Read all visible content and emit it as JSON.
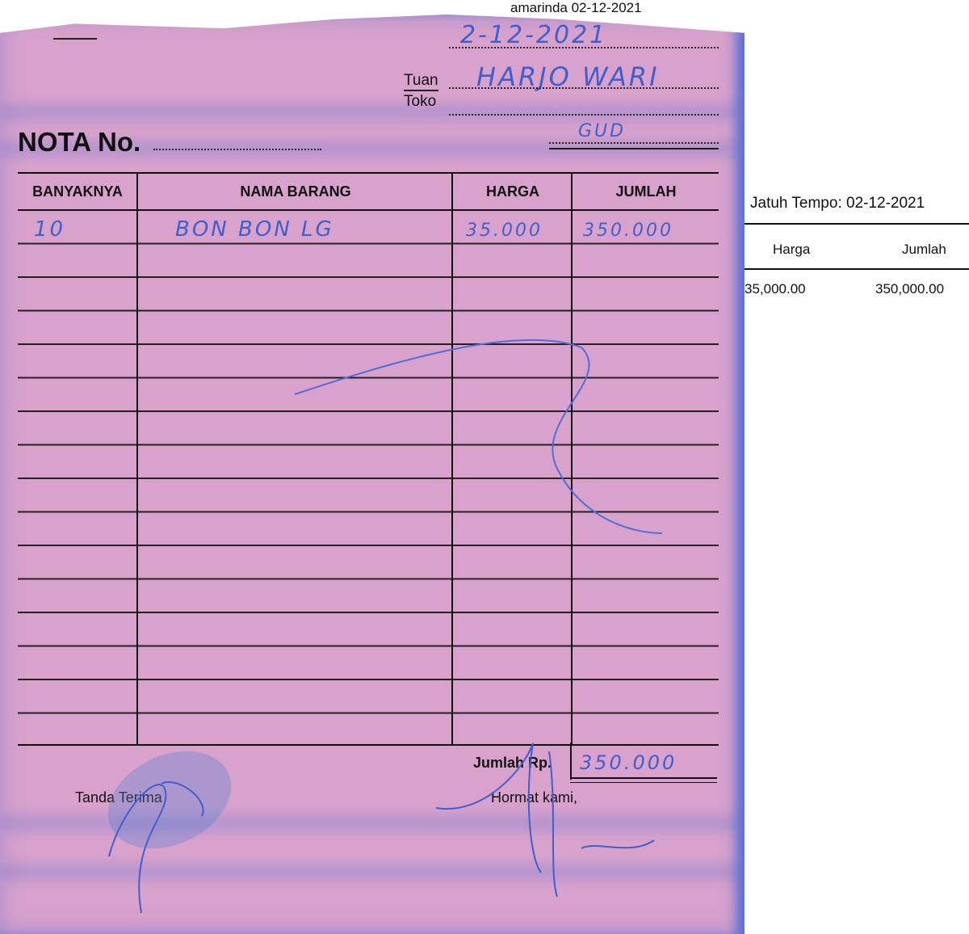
{
  "background_document": {
    "place_date": "amarinda 02-12-2021",
    "due_date": "Jatuh Tempo: 02-12-2021",
    "columns": [
      "Harga",
      "Jumlah"
    ],
    "row": {
      "harga": "35,000.00",
      "jumlah": "350,000.00"
    }
  },
  "nota": {
    "date_handwritten": "2-12-2021",
    "tuan_label": "Tuan",
    "toko_label": "Toko",
    "tuan_handwritten": "HARJO WARI",
    "toko_handwritten": "GUD",
    "title": "NOTA No.",
    "columns": [
      "BANYAKNYA",
      "NAMA BARANG",
      "HARGA",
      "JUMLAH"
    ],
    "items": [
      {
        "qty": "10",
        "name": "BON BON LG",
        "price": "35.000",
        "amount": "350.000"
      }
    ],
    "total_label": "Jumlah Rp.",
    "total_handwritten": "350.000",
    "receiver_label": "Tanda Terima",
    "sender_label": "Hormat kami,"
  },
  "colors": {
    "paper": "#d8a2cc",
    "ink": "#3f5fcc"
  }
}
